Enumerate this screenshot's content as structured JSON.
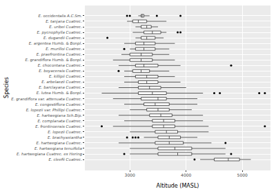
{
  "chart_data": {
    "type": "box",
    "orientation": "horizontal",
    "xlabel": "Altitude (MASL)",
    "ylabel": "Species",
    "categories": [
      "E. occidentalis A.C.Sm.",
      "E. tanjana Cuatrec.",
      "E. uribei Cuatrec.",
      "E. pycnophylla Cuatrec.",
      "E. dugandii Cuatrec.",
      "E. argentea Humb. & Bonpl.",
      "E. murilloi Cuatrec.",
      "E. praefrontina Cuatrec.",
      "E. grandiflora Humb. & Bonpl.",
      "E. chocontana Cuatrec.",
      "E. boyacensis Cuatrec.",
      "E. killipii Cuatrec.",
      "E. arbelaezii Cuatrec.",
      "E. barclayana Cuatrec.",
      "E. lutea Humb. & Bonpl.",
      "E. grandiflora var. attenuata Cuatrec.",
      "E. congestiflora Cuatrec.",
      "E. lopezii var. Phillipi Cuatrec.",
      "E. hartwegiana Sch.Bip.",
      "E. complanata Cuatrec.",
      "E. frontinoensis Cuatrec.",
      "E. lopezii Cuatrec.",
      "E. brachyaxiantha",
      "E. hartwegiana Cuatrec.",
      "E. hartwegiana tenuifolia",
      "E. hartwegiana Cuatrec. ex Hering",
      "E. cleefii Cuatrec."
    ],
    "min": [
      3150,
      2950,
      3100,
      3050,
      3100,
      2900,
      3000,
      2850,
      2700,
      2800,
      2900,
      2900,
      2900,
      2800,
      2500,
      2700,
      2900,
      3000,
      2800,
      2900,
      2700,
      3000,
      3250,
      2800,
      3000,
      3000,
      4250
    ],
    "q1": [
      3200,
      3050,
      3200,
      3250,
      3200,
      3100,
      3100,
      3000,
      3000,
      3100,
      3050,
      3100,
      3150,
      3150,
      3150,
      3200,
      3250,
      3300,
      3350,
      3400,
      3400,
      3450,
      3500,
      3450,
      3500,
      3500,
      4500
    ],
    "median": [
      3220,
      3150,
      3300,
      3400,
      3300,
      3250,
      3250,
      3200,
      3200,
      3250,
      3200,
      3300,
      3300,
      3350,
      3400,
      3500,
      3450,
      3500,
      3550,
      3600,
      3600,
      3650,
      3700,
      3700,
      3800,
      3850,
      4750
    ],
    "q3": [
      3250,
      3300,
      3380,
      3550,
      3450,
      3450,
      3450,
      3400,
      3400,
      3500,
      3350,
      3500,
      3500,
      3550,
      3650,
      3650,
      3700,
      3700,
      3750,
      3800,
      3800,
      3850,
      3900,
      3950,
      4100,
      4100,
      4950
    ],
    "max": [
      3350,
      3650,
      3500,
      3650,
      3600,
      3800,
      3700,
      3700,
      3800,
      3900,
      3700,
      3800,
      3900,
      4000,
      4300,
      4200,
      4200,
      4100,
      4300,
      4300,
      4400,
      4400,
      4200,
      4450,
      4700,
      4700,
      5150
    ],
    "outliers": [
      [
        2950,
        3000,
        3480,
        3900
      ],
      [],
      [],
      [
        3850,
        3900
      ],
      [
        2600
      ],
      [],
      [
        2900
      ],
      [],
      [],
      [
        4800
      ],
      [
        2800
      ],
      [],
      [],
      [],
      [
        4500,
        4600,
        5300,
        5400
      ],
      [],
      [],
      [],
      [],
      [],
      [
        2500,
        5400
      ],
      [],
      [
        2950,
        3050,
        3100,
        3150
      ],
      [
        4700
      ],
      [],
      [
        2900,
        4800
      ],
      [
        4150
      ]
    ],
    "color": "#ffffff",
    "xlim": [
      2200,
      5500
    ],
    "xticks": [
      3000,
      4000,
      5000
    ],
    "grid": true
  }
}
